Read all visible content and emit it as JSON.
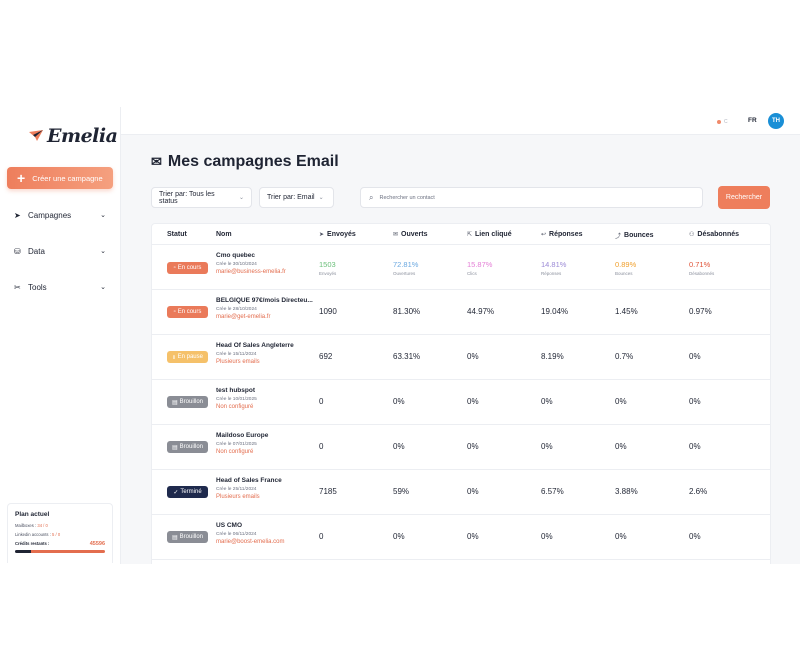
{
  "brand": {
    "name": "Emelia"
  },
  "sidebar": {
    "create_label": "Créer une campagne",
    "items": [
      {
        "label": "Campagnes",
        "icon": "send-icon"
      },
      {
        "label": "Data",
        "icon": "database-icon"
      },
      {
        "label": "Tools",
        "icon": "tools-icon"
      }
    ],
    "plan": {
      "title": "Plan actuel",
      "mailboxes_label": "Mailboxes :",
      "mailboxes_value": "34 / 0",
      "linkedin_label": "Linkedin accounts :",
      "linkedin_value": "5 / 0",
      "credits_label": "Crédits restants :",
      "credits_value": "45596"
    }
  },
  "topbar": {
    "toggle_label": "C",
    "lang": "FR",
    "avatar": "TH"
  },
  "page": {
    "title": "Mes campagnes Email",
    "filter_status": "Trier par: Tous les status",
    "filter_type": "Trier par: Email",
    "search_placeholder": "Rechercher un contact",
    "search_button": "Rechercher"
  },
  "table": {
    "headers": {
      "status": "Statut",
      "name": "Nom",
      "sent": "Envoyés",
      "opened": "Ouverts",
      "clicked": "Lien cliqué",
      "replies": "Réponses",
      "bounces": "Bounces",
      "unsub": "Désabonnés"
    },
    "rows": [
      {
        "status": "En cours",
        "status_type": "en-cours",
        "name": "Cmo quebec",
        "created": "Crée le 30/10/2024",
        "sender": "marie@business-emelia.fr",
        "sent": "1503",
        "opened": "72.81%",
        "clicked": "15.87%",
        "replies": "14.81%",
        "bounces": "0.89%",
        "unsub": "0.71%",
        "sent_sub": "Envoyés",
        "opened_sub": "Ouvertures",
        "clicked_sub": "Clics",
        "replies_sub": "Réponses",
        "bounces_sub": "Bounces",
        "unsub_sub": "Désabonnés"
      },
      {
        "status": "En cours",
        "status_type": "en-cours",
        "name": "BELGIQUE 97€/mois Directeu...",
        "created": "Crée le 28/10/2024",
        "sender": "marie@get-emelia.fr",
        "sent": "1090",
        "opened": "81.30%",
        "clicked": "44.97%",
        "replies": "19.04%",
        "bounces": "1.45%",
        "unsub": "0.97%"
      },
      {
        "status": "En pause",
        "status_type": "pause",
        "name": "Head Of Sales Angleterre",
        "created": "Crée le 15/11/2024",
        "sender": "Plusieurs emails",
        "sent": "692",
        "opened": "63.31%",
        "clicked": "0%",
        "replies": "8.19%",
        "bounces": "0.7%",
        "unsub": "0%"
      },
      {
        "status": "Brouillon",
        "status_type": "brouillon",
        "name": "test hubspot",
        "created": "Crée le 10/01/2025",
        "sender": "Non configuré",
        "sent": "0",
        "opened": "0%",
        "clicked": "0%",
        "replies": "0%",
        "bounces": "0%",
        "unsub": "0%"
      },
      {
        "status": "Brouillon",
        "status_type": "brouillon",
        "name": "Maildoso Europe",
        "created": "Crée le 07/01/2025",
        "sender": "Non configuré",
        "sent": "0",
        "opened": "0%",
        "clicked": "0%",
        "replies": "0%",
        "bounces": "0%",
        "unsub": "0%"
      },
      {
        "status": "Terminé",
        "status_type": "termine",
        "name": "Head of Sales France",
        "created": "Crée le 25/11/2024",
        "sender": "Plusieurs emails",
        "sent": "7185",
        "opened": "59%",
        "clicked": "0%",
        "replies": "6.57%",
        "bounces": "3.88%",
        "unsub": "2.6%"
      },
      {
        "status": "Brouillon",
        "status_type": "brouillon",
        "name": "US CMO",
        "created": "Crée le 06/11/2024",
        "sender": "marie@boost-emelia.com",
        "sent": "0",
        "opened": "0%",
        "clicked": "0%",
        "replies": "0%",
        "bounces": "0%",
        "unsub": "0%"
      }
    ]
  },
  "colors": {
    "accent": "#ee7e5c",
    "green": "#6bbf7a",
    "blue": "#6ba8e0",
    "pink": "#e47fd6",
    "purple": "#9b8ad6",
    "orange": "#f0a02e",
    "red": "#e0553a"
  }
}
